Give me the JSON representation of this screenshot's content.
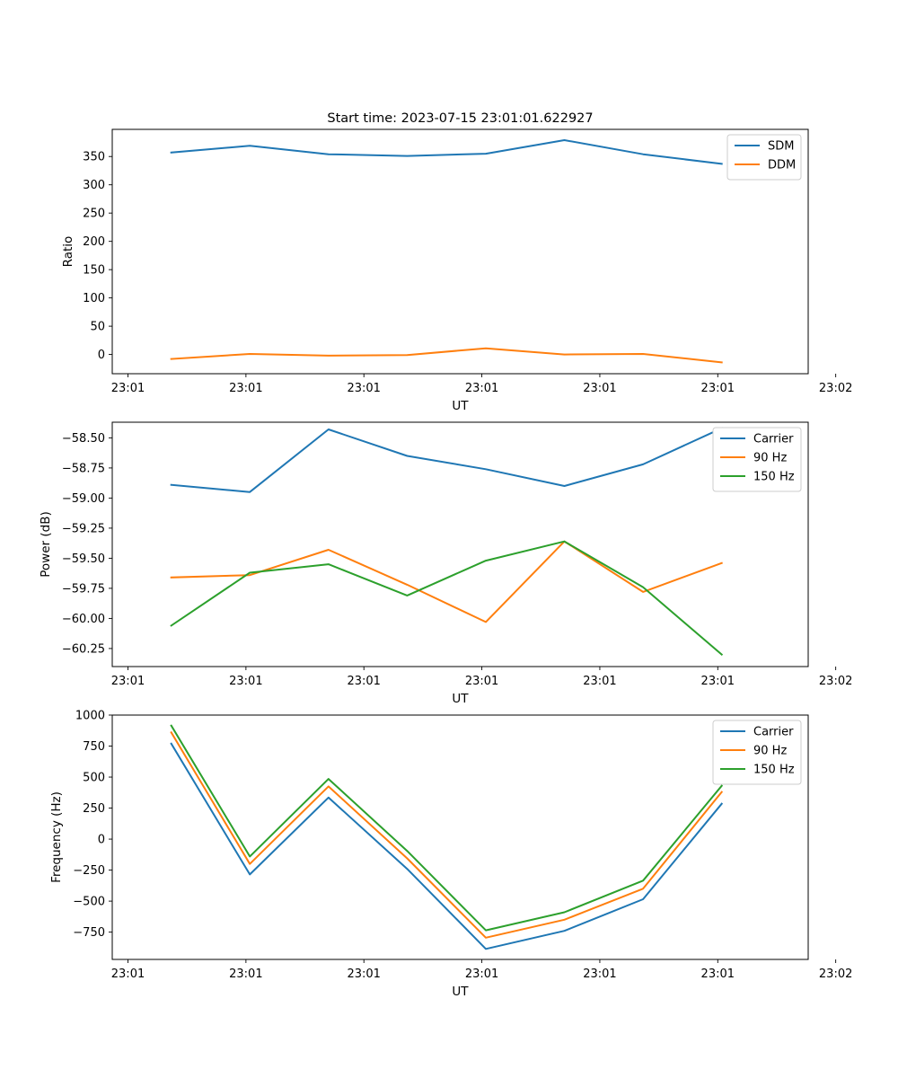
{
  "figure": {
    "title": "Start time: 2023-07-15 23:01:01.622927"
  },
  "chart_data": [
    {
      "type": "line",
      "name": "ratio",
      "title": "Start time: 2023-07-15 23:01:01.622927",
      "xlabel": "UT",
      "ylabel": "Ratio",
      "x": [
        1,
        2,
        3,
        4,
        5,
        6,
        7,
        8
      ],
      "xlim": [
        0.25,
        9.1
      ],
      "ylim": [
        -34,
        398
      ],
      "xticks": [
        0.45,
        1.95,
        3.45,
        4.95,
        6.45,
        7.95,
        9.45
      ],
      "xtick_labels": [
        "23:01",
        "23:01",
        "23:01",
        "23:01",
        "23:01",
        "23:01",
        "23:02"
      ],
      "yticks": [
        0,
        50,
        100,
        150,
        200,
        250,
        300,
        350
      ],
      "ytick_labels": [
        "0",
        "50",
        "100",
        "150",
        "200",
        "250",
        "300",
        "350"
      ],
      "legend_position": "top-right",
      "series": [
        {
          "name": "SDM",
          "color": "#1f77b4",
          "values": [
            357,
            369,
            354,
            351,
            355,
            379,
            354,
            337
          ]
        },
        {
          "name": "DDM",
          "color": "#ff7f0e",
          "values": [
            -8,
            1,
            -2,
            -1,
            11,
            0,
            1,
            -14
          ]
        }
      ]
    },
    {
      "type": "line",
      "name": "power",
      "title": "",
      "xlabel": "UT",
      "ylabel": "Power (dB)",
      "x": [
        1,
        2,
        3,
        4,
        5,
        6,
        7,
        8
      ],
      "xlim": [
        0.25,
        9.1
      ],
      "ylim": [
        -60.4,
        -58.37
      ],
      "xticks": [
        0.45,
        1.95,
        3.45,
        4.95,
        6.45,
        7.95,
        9.45
      ],
      "xtick_labels": [
        "23:01",
        "23:01",
        "23:01",
        "23:01",
        "23:01",
        "23:01",
        "23:02"
      ],
      "yticks": [
        -60.25,
        -60.0,
        -59.75,
        -59.5,
        -59.25,
        -59.0,
        -58.75,
        -58.5
      ],
      "ytick_labels": [
        "−60.25",
        "−60.00",
        "−59.75",
        "−59.50",
        "−59.25",
        "−59.00",
        "−58.75",
        "−58.50"
      ],
      "legend_position": "top-right",
      "series": [
        {
          "name": "Carrier",
          "color": "#1f77b4",
          "values": [
            -58.89,
            -58.95,
            -58.43,
            -58.65,
            -58.76,
            -58.9,
            -58.72,
            -58.42
          ]
        },
        {
          "name": "90 Hz",
          "color": "#ff7f0e",
          "values": [
            -59.66,
            -59.64,
            -59.43,
            -59.72,
            -60.03,
            -59.36,
            -59.78,
            -59.54
          ]
        },
        {
          "name": "150 Hz",
          "color": "#2ca02c",
          "values": [
            -60.06,
            -59.62,
            -59.55,
            -59.81,
            -59.52,
            -59.36,
            -59.74,
            -60.3
          ]
        }
      ]
    },
    {
      "type": "line",
      "name": "frequency",
      "title": "",
      "xlabel": "UT",
      "ylabel": "Frequency (Hz)",
      "x": [
        1,
        2,
        3,
        4,
        5,
        6,
        7,
        8
      ],
      "xlim": [
        0.25,
        9.1
      ],
      "ylim": [
        -970,
        1000
      ],
      "xticks": [
        0.45,
        1.95,
        3.45,
        4.95,
        6.45,
        7.95,
        9.45
      ],
      "xtick_labels": [
        "23:01",
        "23:01",
        "23:01",
        "23:01",
        "23:01",
        "23:01",
        "23:02"
      ],
      "yticks": [
        -750,
        -500,
        -250,
        0,
        250,
        500,
        750,
        1000
      ],
      "ytick_labels": [
        "−750",
        "−500",
        "−250",
        "0",
        "250",
        "500",
        "750",
        "1000"
      ],
      "legend_position": "top-right",
      "series": [
        {
          "name": "Carrier",
          "color": "#1f77b4",
          "values": [
            770,
            -285,
            335,
            -240,
            -885,
            -740,
            -485,
            285
          ]
        },
        {
          "name": "90 Hz",
          "color": "#ff7f0e",
          "values": [
            860,
            -200,
            425,
            -155,
            -795,
            -650,
            -400,
            380
          ]
        },
        {
          "name": "150 Hz",
          "color": "#2ca02c",
          "values": [
            915,
            -140,
            485,
            -95,
            -735,
            -590,
            -335,
            430
          ]
        }
      ]
    }
  ]
}
